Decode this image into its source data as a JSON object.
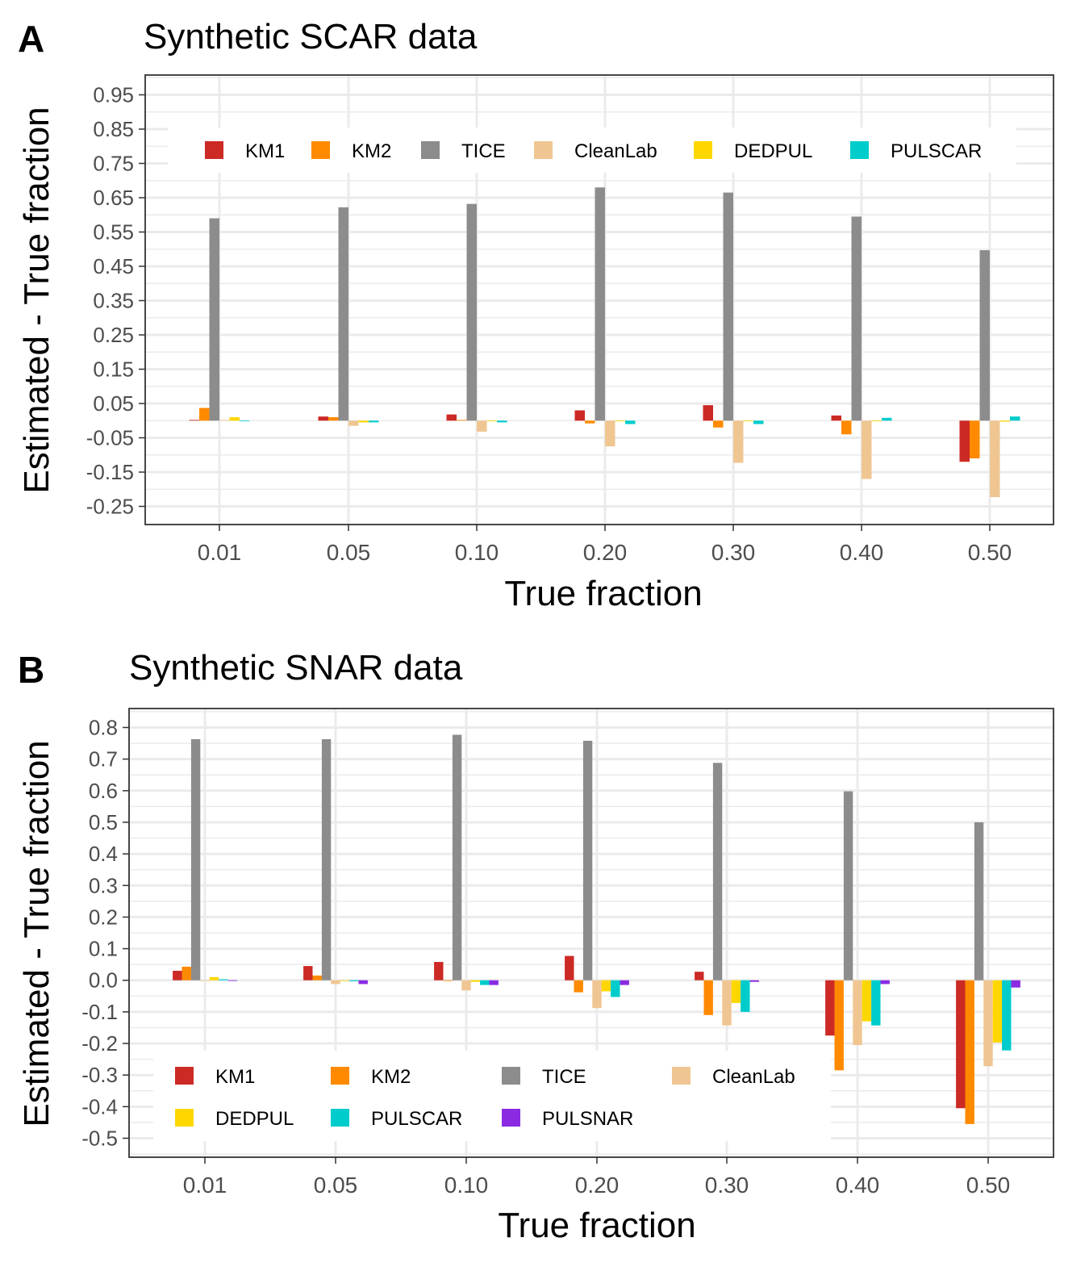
{
  "chart_data": [
    {
      "type": "bar",
      "panel": "A",
      "title": "Synthetic SCAR data",
      "xlabel": "True fraction",
      "ylabel": "Estimated - True fraction",
      "categories": [
        "0.01",
        "0.05",
        "0.10",
        "0.20",
        "0.30",
        "0.40",
        "0.50"
      ],
      "ylim": [
        -0.28,
        1.0
      ],
      "yticks": [
        "0.95",
        "0.85",
        "0.75",
        "0.65",
        "0.55",
        "0.45",
        "0.35",
        "0.25",
        "0.15",
        "0.05",
        "-0.05",
        "-0.15",
        "-0.25"
      ],
      "grid": true,
      "legend_position": "top",
      "series": [
        {
          "name": "KM1",
          "color": "#cc2a25",
          "values": [
            0.002,
            0.012,
            0.018,
            0.03,
            0.045,
            0.015,
            -0.12
          ]
        },
        {
          "name": "KM2",
          "color": "#ff8a00",
          "values": [
            0.037,
            0.01,
            0.002,
            -0.008,
            -0.02,
            -0.04,
            -0.11
          ]
        },
        {
          "name": "TICE",
          "color": "#8c8c8c",
          "values": [
            0.59,
            0.622,
            0.632,
            0.68,
            0.665,
            0.595,
            0.497
          ]
        },
        {
          "name": "CleanLab",
          "color": "#efc692",
          "values": [
            0.002,
            -0.015,
            -0.032,
            -0.075,
            -0.123,
            -0.17,
            -0.223
          ]
        },
        {
          "name": "DEDPUL",
          "color": "#ffd700",
          "values": [
            0.01,
            -0.005,
            -0.002,
            -0.002,
            -0.002,
            -0.002,
            -0.003
          ]
        },
        {
          "name": "PULSCAR",
          "color": "#00cccc",
          "values": [
            0.0,
            -0.005,
            -0.005,
            -0.01,
            -0.01,
            0.008,
            0.012
          ]
        }
      ]
    },
    {
      "type": "bar",
      "panel": "B",
      "title": "Synthetic SNAR data",
      "xlabel": "True fraction",
      "ylabel": "Estimated - True fraction",
      "categories": [
        "0.01",
        "0.05",
        "0.10",
        "0.20",
        "0.30",
        "0.40",
        "0.50"
      ],
      "ylim": [
        -0.56,
        0.85
      ],
      "yticks": [
        "0.8",
        "0.7",
        "0.6",
        "0.5",
        "0.4",
        "0.3",
        "0.2",
        "0.1",
        "0.0",
        "-0.1",
        "-0.2",
        "-0.3",
        "-0.4",
        "-0.5"
      ],
      "grid": true,
      "legend_position": "bottom-left",
      "series": [
        {
          "name": "KM1",
          "color": "#cc2a25",
          "values": [
            0.03,
            0.045,
            0.058,
            0.077,
            0.027,
            -0.175,
            -0.405
          ]
        },
        {
          "name": "KM2",
          "color": "#ff8a00",
          "values": [
            0.043,
            0.015,
            0.0,
            -0.038,
            -0.11,
            -0.285,
            -0.455
          ]
        },
        {
          "name": "TICE",
          "color": "#8c8c8c",
          "values": [
            0.763,
            0.763,
            0.777,
            0.758,
            0.688,
            0.598,
            0.5
          ]
        },
        {
          "name": "CleanLab",
          "color": "#efc692",
          "values": [
            0.0,
            -0.012,
            -0.032,
            -0.088,
            -0.143,
            -0.205,
            -0.272
          ]
        },
        {
          "name": "DEDPUL",
          "color": "#ffd700",
          "values": [
            0.01,
            0.0,
            -0.005,
            -0.035,
            -0.072,
            -0.13,
            -0.197
          ]
        },
        {
          "name": "PULSCAR",
          "color": "#00cccc",
          "values": [
            0.003,
            -0.003,
            -0.015,
            -0.053,
            -0.1,
            -0.143,
            -0.222
          ]
        },
        {
          "name": "PULSNAR",
          "color": "#8a2be2",
          "values": [
            0.0,
            -0.012,
            -0.015,
            -0.015,
            -0.005,
            -0.012,
            -0.023
          ]
        }
      ]
    }
  ]
}
